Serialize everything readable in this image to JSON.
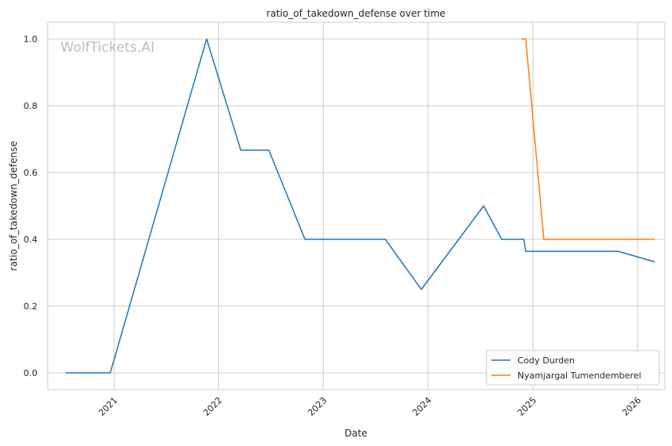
{
  "chart_data": {
    "type": "line",
    "title": "ratio_of_takedown_defense over time",
    "xlabel": "Date",
    "ylabel": "ratio_of_takedown_defense",
    "watermark": "WolfTickets.AI",
    "x_ticks": [
      "2021",
      "2022",
      "2023",
      "2024",
      "2025",
      "2026"
    ],
    "y_ticks": [
      "0.0",
      "0.2",
      "0.4",
      "0.6",
      "0.8",
      "1.0"
    ],
    "xlim": [
      "2020-05-15",
      "2026-04-06"
    ],
    "ylim": [
      -0.05,
      1.05
    ],
    "grid": true,
    "legend_position": "bottom-right",
    "series": [
      {
        "name": "Cody Durden",
        "color": "#1f77b4",
        "points": [
          [
            "2020-07-18",
            0.0
          ],
          [
            "2020-12-19",
            0.0
          ],
          [
            "2021-11-20",
            1.0
          ],
          [
            "2022-03-19",
            0.667
          ],
          [
            "2022-06-25",
            0.667
          ],
          [
            "2022-10-29",
            0.4
          ],
          [
            "2023-08-05",
            0.4
          ],
          [
            "2023-12-09",
            0.25
          ],
          [
            "2024-07-13",
            0.5
          ],
          [
            "2024-09-14",
            0.4
          ],
          [
            "2024-11-30",
            0.4
          ],
          [
            "2024-12-07",
            0.364
          ],
          [
            "2025-10-25",
            0.364
          ],
          [
            "2026-02-28",
            0.333
          ]
        ]
      },
      {
        "name": "Nyamjargal Tumendemberel",
        "color": "#ff7f0e",
        "points": [
          [
            "2024-11-23",
            1.0
          ],
          [
            "2024-12-07",
            1.0
          ],
          [
            "2025-02-08",
            0.4
          ],
          [
            "2026-02-28",
            0.4
          ]
        ]
      }
    ]
  }
}
